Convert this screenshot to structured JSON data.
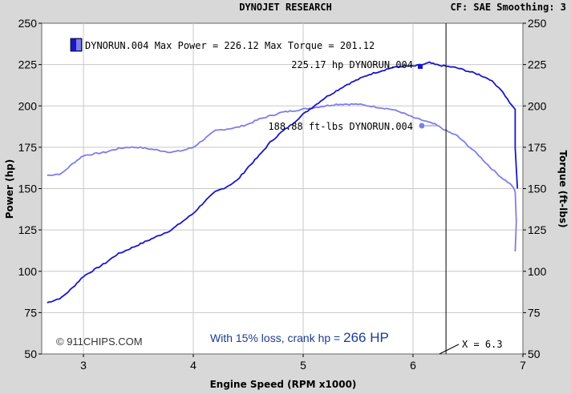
{
  "header": {
    "title": "DYNOJET RESEARCH",
    "settings": "CF: SAE  Smoothing: 3"
  },
  "legend": {
    "text": "DYNORUN.004 Max Power = 226.12 Max Torque = 201.12"
  },
  "annotations": {
    "power_peak": "225.17 hp DYNORUN.004",
    "torque_point": "188.88 ft-lbs DYNORUN.004",
    "cursor": "X = 6.3",
    "copyright": "© 911CHIPS.COM",
    "loss_text": "With 15% loss, crank hp = ",
    "loss_value": "266 HP"
  },
  "colors": {
    "background": "#d8d8d8",
    "plot_bg": "#ffffff",
    "grid": "#c8c8c8",
    "power": "#1717c8",
    "torque": "#7e7ee6"
  },
  "chart_data": {
    "type": "line",
    "xlabel": "Engine Speed (RPM x1000)",
    "ylabel": "Power (hp)",
    "y2label": "Torque (ft-lbs)",
    "xlim": [
      2.62,
      7.0
    ],
    "ylim": [
      50,
      250
    ],
    "y2lim": [
      50,
      250
    ],
    "xticks": [
      3,
      4,
      5,
      6,
      7
    ],
    "yticks": [
      50,
      75,
      100,
      125,
      150,
      175,
      200,
      225,
      250
    ],
    "y2ticks": [
      50,
      75,
      100,
      125,
      150,
      175,
      200,
      225,
      250
    ],
    "grid": true,
    "cursor_x": 6.3,
    "series": [
      {
        "axis": "left",
        "x": [
          2.67,
          2.8,
          2.9,
          3.0,
          3.1,
          3.2,
          3.3,
          3.4,
          3.5,
          3.6,
          3.7,
          3.8,
          3.9,
          4.0,
          4.1,
          4.2,
          4.3,
          4.4,
          4.5,
          4.6,
          4.7,
          4.8,
          4.9,
          5.0,
          5.1,
          5.2,
          5.3,
          5.4,
          5.5,
          5.6,
          5.7,
          5.8,
          5.9,
          6.0,
          6.1,
          6.15,
          6.2,
          6.3,
          6.4,
          6.5,
          6.6,
          6.7,
          6.8,
          6.9,
          6.93,
          6.93,
          6.95
        ],
        "values": [
          81,
          84,
          90,
          97,
          101,
          105,
          110,
          113,
          116,
          119,
          122,
          125,
          130,
          135,
          142,
          148,
          151,
          155,
          163,
          170,
          178,
          184,
          189,
          195,
          200,
          205,
          209,
          213,
          216,
          219,
          221,
          223,
          224,
          224,
          225.17,
          226.12,
          225,
          224,
          223,
          221,
          219,
          216,
          210,
          200,
          198,
          175,
          150
        ]
      },
      {
        "axis": "right",
        "x": [
          2.67,
          2.8,
          2.9,
          3.0,
          3.1,
          3.2,
          3.3,
          3.4,
          3.5,
          3.6,
          3.7,
          3.8,
          3.9,
          4.0,
          4.1,
          4.2,
          4.3,
          4.4,
          4.5,
          4.6,
          4.7,
          4.8,
          4.9,
          5.0,
          5.1,
          5.2,
          5.3,
          5.4,
          5.5,
          5.6,
          5.7,
          5.8,
          5.9,
          6.0,
          6.1,
          6.2,
          6.3,
          6.4,
          6.5,
          6.6,
          6.7,
          6.8,
          6.9,
          6.93,
          6.94,
          6.93
        ],
        "values": [
          158,
          159,
          165,
          170,
          171,
          172,
          174,
          175,
          175,
          174,
          173,
          172,
          173,
          175,
          180,
          185,
          186,
          187,
          189,
          192,
          194,
          196,
          197,
          198,
          199,
          200,
          201,
          201.12,
          201,
          200,
          199,
          198,
          196,
          193,
          191,
          188.88,
          185,
          182,
          176,
          170,
          163,
          157,
          152,
          148,
          130,
          112
        ]
      }
    ]
  }
}
